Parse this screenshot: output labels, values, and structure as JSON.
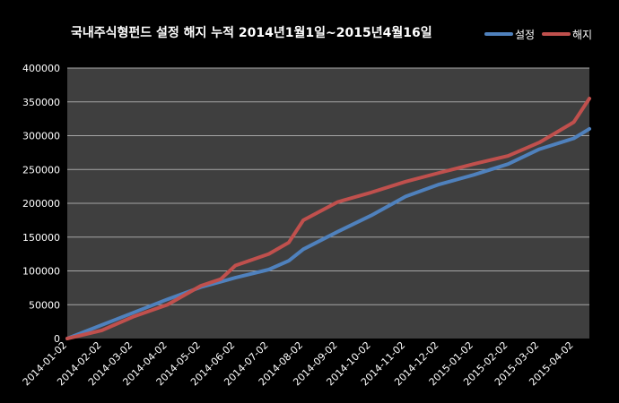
{
  "chart_data": {
    "type": "line",
    "title": "국내주식형펀드 설정 해지 누적  2014년1월1일~2015년4월16일",
    "xlabel": "",
    "ylabel": "",
    "ylim": [
      0,
      400000
    ],
    "yticks": [
      "0",
      "50000",
      "100000",
      "150000",
      "200000",
      "250000",
      "300000",
      "350000",
      "400000"
    ],
    "x_tick_labels": [
      "2014-01-02",
      "2014-02-02",
      "2014-03-02",
      "2014-04-02",
      "2014-05-02",
      "2014-06-02",
      "2014-07-02",
      "2014-08-02",
      "2014-09-02",
      "2014-10-02",
      "2014-11-02",
      "2014-12-02",
      "2015-01-02",
      "2015-02-02",
      "2015-03-02",
      "2015-04-02"
    ],
    "grid": true,
    "legend_position": "top-right",
    "x": [
      "2014-01-02",
      "2014-02-02",
      "2014-03-02",
      "2014-04-02",
      "2014-05-02",
      "2014-05-20",
      "2014-06-02",
      "2014-07-02",
      "2014-07-20",
      "2014-08-02",
      "2014-09-02",
      "2014-10-02",
      "2014-11-02",
      "2014-12-02",
      "2015-01-02",
      "2015-02-02",
      "2015-03-02",
      "2015-04-02",
      "2015-04-16"
    ],
    "series": [
      {
        "name": "설정",
        "color": "#4f81bd",
        "values": [
          0,
          20000,
          38000,
          58000,
          76000,
          84000,
          90000,
          102000,
          115000,
          132000,
          158000,
          182000,
          210000,
          228000,
          242000,
          258000,
          280000,
          296000,
          310000
        ]
      },
      {
        "name": "해지",
        "color": "#c0504d",
        "values": [
          0,
          12000,
          32000,
          50000,
          78000,
          88000,
          108000,
          125000,
          142000,
          175000,
          202000,
          216000,
          232000,
          245000,
          258000,
          270000,
          290000,
          320000,
          355000
        ]
      }
    ]
  }
}
